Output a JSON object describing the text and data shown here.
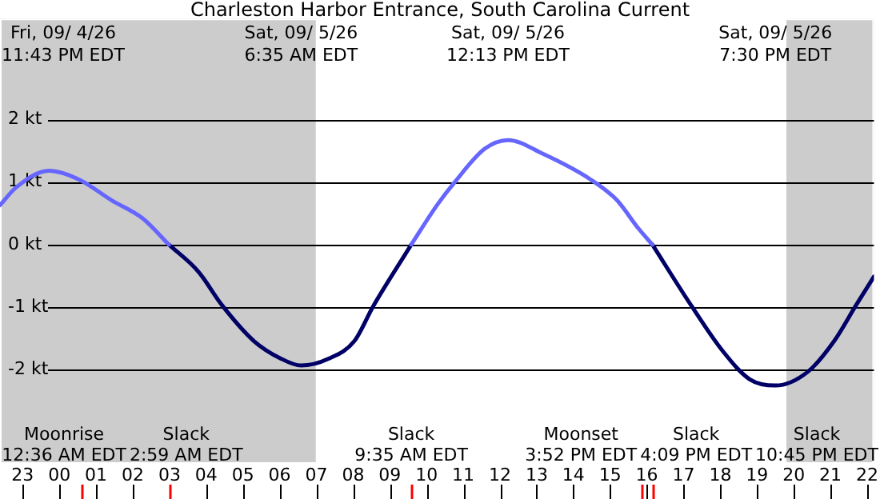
{
  "chart_data": {
    "type": "line",
    "title": "Charleston Harbor Entrance, South Carolina Current",
    "x": [
      "--09-04T22:23",
      "--09-04T22:49",
      "--09-04T23:43",
      "--09-05T00:32",
      "--09-05T01:25",
      "--09-05T02:16",
      "--09-05T02:59",
      "--09-05T03:47",
      "--09-05T04:26",
      "--09-05T05:18",
      "--09-05T06:02",
      "--09-05T06:35",
      "--09-05T07:20",
      "--09-05T08:02",
      "--09-05T08:33",
      "--09-05T09:35",
      "--09-05T10:17",
      "--09-05T10:47",
      "--09-05T11:35",
      "--09-05T12:13",
      "--09-05T13:10",
      "--09-05T14:28",
      "--09-05T15:11",
      "--09-05T15:46",
      "--09-05T16:09",
      "--09-05T17:13",
      "--09-05T18:04",
      "--09-05T18:48",
      "--09-05T19:30",
      "--09-05T20:23",
      "--09-05T21:06",
      "--09-05T21:41",
      "--09-05T22:11"
    ],
    "series": [
      {
        "color": "#6666ff",
        "values": [
          0.63,
          0.91,
          1.18,
          1.04,
          0.71,
          0.42,
          0,
          null,
          null,
          null,
          null,
          null,
          null,
          null,
          null,
          0,
          0.63,
          1.01,
          1.53,
          1.67,
          1.45,
          1.04,
          0.71,
          0.26,
          0,
          null,
          null,
          null,
          null,
          null,
          null,
          null,
          null
        ]
      },
      {
        "color": "#000066",
        "values": [
          null,
          null,
          null,
          null,
          null,
          null,
          0,
          -0.43,
          -0.97,
          -1.54,
          -1.82,
          -1.93,
          -1.82,
          -1.54,
          -0.98,
          0,
          null,
          null,
          null,
          null,
          null,
          null,
          null,
          null,
          0,
          -0.98,
          -1.7,
          -2.15,
          -2.25,
          -2.03,
          -1.54,
          -0.98,
          -0.51
        ]
      }
    ],
    "xlim": [
      "--09-04T22:23",
      "--09-05T22:11"
    ],
    "xticks": [
      {
        "value": "--09-04T23:00",
        "label": "23"
      },
      {
        "value": "--09-05T00:00",
        "label": "00"
      },
      {
        "value": "--09-05T01:00",
        "label": "01"
      },
      {
        "value": "--09-05T02:00",
        "label": "02"
      },
      {
        "value": "--09-05T03:00",
        "label": "03"
      },
      {
        "value": "--09-05T04:00",
        "label": "04"
      },
      {
        "value": "--09-05T05:00",
        "label": "05"
      },
      {
        "value": "--09-05T06:00",
        "label": "06"
      },
      {
        "value": "--09-05T07:00",
        "label": "07"
      },
      {
        "value": "--09-05T08:00",
        "label": "08"
      },
      {
        "value": "--09-05T09:00",
        "label": "09"
      },
      {
        "value": "--09-05T10:00",
        "label": "10"
      },
      {
        "value": "--09-05T11:00",
        "label": "11"
      },
      {
        "value": "--09-05T12:00",
        "label": "12"
      },
      {
        "value": "--09-05T13:00",
        "label": "13"
      },
      {
        "value": "--09-05T14:00",
        "label": "14"
      },
      {
        "value": "--09-05T15:00",
        "label": "15"
      },
      {
        "value": "--09-05T16:00",
        "label": "16"
      },
      {
        "value": "--09-05T17:00",
        "label": "17"
      },
      {
        "value": "--09-05T18:00",
        "label": "18"
      },
      {
        "value": "--09-05T19:00",
        "label": "19"
      },
      {
        "value": "--09-05T20:00",
        "label": "20"
      },
      {
        "value": "--09-05T21:00",
        "label": "21"
      },
      {
        "value": "--09-05T22:00",
        "label": "22"
      }
    ],
    "ylim": [
      -3.5,
      3.61
    ],
    "yticks": [
      {
        "value": -2,
        "label": "-2 kt"
      },
      {
        "value": -1,
        "label": "-1 kt"
      },
      {
        "value": 0,
        "label": "0 kt"
      },
      {
        "value": 1,
        "label": "1 kt"
      },
      {
        "value": 2,
        "label": "2 kt"
      }
    ],
    "grid": "y",
    "legend": false,
    "bands": [
      {
        "axis": "x",
        "from": "--09-04T22:23",
        "to": "--09-05T06:59",
        "color": "#cccccc"
      },
      {
        "axis": "x",
        "from": "--09-05T19:48",
        "to": "--09-05T22:11",
        "color": "#cccccc"
      }
    ],
    "ref_lines": [
      {
        "axis": "x",
        "value": "--09-05T00:36",
        "label": "Moonrise\n12:36 AM EDT",
        "color": "#ff0000"
      },
      {
        "axis": "x",
        "value": "--09-05T02:59",
        "label": "Slack\n2:59 AM EDT",
        "color": "#ff0000"
      },
      {
        "axis": "x",
        "value": "--09-05T09:35",
        "label": "Slack\n9:35 AM EDT",
        "color": "#ff0000"
      },
      {
        "axis": "x",
        "value": "--09-05T15:52",
        "label": "Moonset\n3:52 PM EDT",
        "color": "#ff0000"
      },
      {
        "axis": "x",
        "value": "--09-05T16:09",
        "label": "Slack\n4:09 PM EDT",
        "color": "#ff0000"
      }
    ],
    "annotations": [
      "Fri, 09/ 4/26\n11:43 PM EDT",
      "Sat, 09/ 5/26\n6:35 AM EDT",
      "Sat, 09/ 5/26\n12:13 PM EDT",
      "Sat, 09/ 5/26\n7:30 PM EDT",
      "Slack\n10:45 PM EDT"
    ]
  }
}
